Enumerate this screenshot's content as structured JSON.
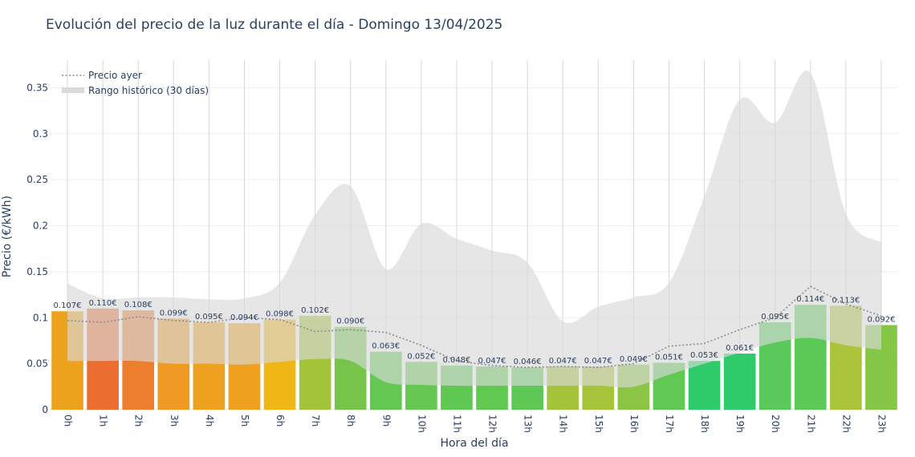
{
  "chart_data": {
    "type": "bar",
    "title": "Evolución del precio de la luz durante el día - Domingo 13/04/2025",
    "xlabel": "Hora del día",
    "ylabel": "Precio (€/kWh)",
    "ylim": [
      0,
      0.38
    ],
    "y_ticks": [
      0,
      0.05,
      0.1,
      0.15,
      0.2,
      0.25,
      0.3,
      0.35
    ],
    "y_tick_labels": [
      "0",
      "0.05",
      "0.1",
      "0.15",
      "0.2",
      "0.25",
      "0.3",
      "0.35"
    ],
    "categories": [
      "0h",
      "1h",
      "2h",
      "3h",
      "4h",
      "5h",
      "6h",
      "7h",
      "8h",
      "9h",
      "10h",
      "11h",
      "12h",
      "13h",
      "14h",
      "15h",
      "16h",
      "17h",
      "18h",
      "19h",
      "20h",
      "21h",
      "22h",
      "23h"
    ],
    "values": [
      0.107,
      0.11,
      0.108,
      0.099,
      0.095,
      0.094,
      0.098,
      0.102,
      0.09,
      0.063,
      0.052,
      0.048,
      0.047,
      0.046,
      0.047,
      0.047,
      0.049,
      0.051,
      0.053,
      0.061,
      0.095,
      0.114,
      0.113,
      0.092
    ],
    "value_labels": [
      "0.107€",
      "0.110€",
      "0.108€",
      "0.099€",
      "0.095€",
      "0.094€",
      "0.098€",
      "0.102€",
      "0.090€",
      "0.063€",
      "0.052€",
      "0.048€",
      "0.047€",
      "0.046€",
      "0.047€",
      "0.047€",
      "0.049€",
      "0.051€",
      "0.053€",
      "0.061€",
      "0.095€",
      "0.114€",
      "0.113€",
      "0.092€"
    ],
    "bar_colors": [
      "#eda21e",
      "#ec6d30",
      "#ec7e2e",
      "#ee9a23",
      "#eea11e",
      "#eea01e",
      "#f0b616",
      "#a3c43a",
      "#76c54a",
      "#62c852",
      "#66c852",
      "#5fc853",
      "#61c852",
      "#5dc854",
      "#a3c43a",
      "#a5c43a",
      "#8cc543",
      "#60c853",
      "#2fcb6a",
      "#2fcb6a",
      "#58c95a",
      "#5cc855",
      "#abc43a",
      "#84c646"
    ],
    "series": [
      {
        "name": "Precio ayer",
        "style": "dotted",
        "color": "#8c8c8c",
        "values": [
          0.097,
          0.095,
          0.101,
          0.097,
          0.095,
          0.1,
          0.098,
          0.085,
          0.087,
          0.084,
          0.07,
          0.053,
          0.048,
          0.046,
          0.047,
          0.046,
          0.05,
          0.069,
          0.072,
          0.087,
          0.1,
          0.134,
          0.115,
          0.102
        ]
      },
      {
        "name": "Rango histórico (30 días)",
        "style": "band",
        "color": "#d9d9d9",
        "upper": [
          0.137,
          0.121,
          0.122,
          0.122,
          0.12,
          0.121,
          0.138,
          0.212,
          0.243,
          0.153,
          0.202,
          0.186,
          0.173,
          0.16,
          0.096,
          0.112,
          0.122,
          0.138,
          0.232,
          0.337,
          0.312,
          0.366,
          0.213,
          0.182
        ],
        "lower": [
          0.053,
          0.053,
          0.053,
          0.05,
          0.05,
          0.049,
          0.052,
          0.055,
          0.053,
          0.03,
          0.027,
          0.026,
          0.026,
          0.026,
          0.026,
          0.026,
          0.025,
          0.038,
          0.05,
          0.062,
          0.073,
          0.078,
          0.07,
          0.065
        ]
      }
    ],
    "legend_position": "top-left",
    "grid": true
  }
}
